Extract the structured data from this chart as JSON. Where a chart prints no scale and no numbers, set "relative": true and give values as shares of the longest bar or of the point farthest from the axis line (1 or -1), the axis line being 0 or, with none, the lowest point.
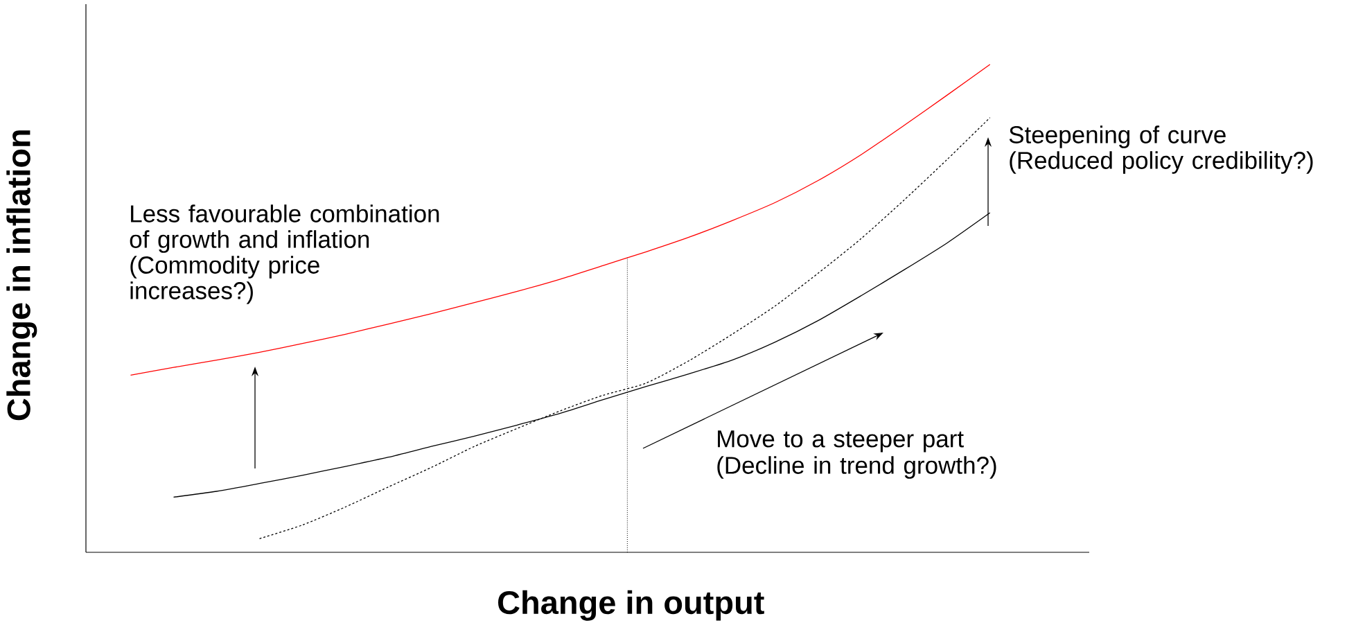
{
  "chart_data": {
    "type": "line",
    "relative": true,
    "xlabel": "Change in output",
    "ylabel": "Change in inflation",
    "categories": [
      null,
      null,
      null,
      null,
      null,
      null,
      null,
      null,
      null,
      null,
      null,
      null,
      null,
      null,
      null,
      null,
      null,
      null,
      null,
      null,
      null
    ],
    "series": [
      {
        "color": "#ff0000",
        "line_style": "solid",
        "values": [
          0.363,
          0.379,
          0.394,
          0.41,
          0.428,
          0.447,
          0.468,
          0.489,
          0.512,
          0.535,
          0.56,
          0.588,
          0.616,
          0.646,
          0.68,
          0.717,
          0.762,
          0.815,
          0.875,
          0.937,
          1.0
        ]
      },
      {
        "color": "#000000",
        "line_style": "solid",
        "values": [
          null,
          0.113,
          0.125,
          0.141,
          0.158,
          0.176,
          0.195,
          0.217,
          0.238,
          0.261,
          0.285,
          0.313,
          0.34,
          0.366,
          0.394,
          0.431,
          0.475,
          0.526,
          0.579,
          0.634,
          0.696
        ]
      },
      {
        "color": "#000000",
        "line_style": "dashed",
        "values": [
          null,
          null,
          null,
          0.028,
          0.056,
          0.093,
          0.134,
          0.174,
          0.217,
          0.254,
          0.29,
          0.322,
          0.347,
          0.393,
          0.447,
          0.505,
          0.572,
          0.643,
          0.722,
          0.805,
          0.891
        ]
      }
    ],
    "annotations": [
      "Less favourable combination of growth and inflation",
      "(Commodity price increases?)",
      "Steepening of curve",
      "(Reduced policy credibility?)",
      "Move to a steeper part",
      "(Decline in trend growth?)"
    ],
    "marker": "none"
  }
}
